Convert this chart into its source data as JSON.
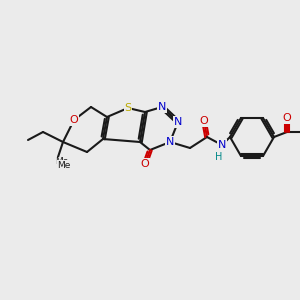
{
  "bg_color": "#ebebeb",
  "atom_colors": {
    "C": "#1a1a1a",
    "S": "#bbaa00",
    "O": "#cc0000",
    "N": "#0000cc",
    "H": "#008888"
  },
  "figsize": [
    3.0,
    3.0
  ],
  "dpi": 100
}
